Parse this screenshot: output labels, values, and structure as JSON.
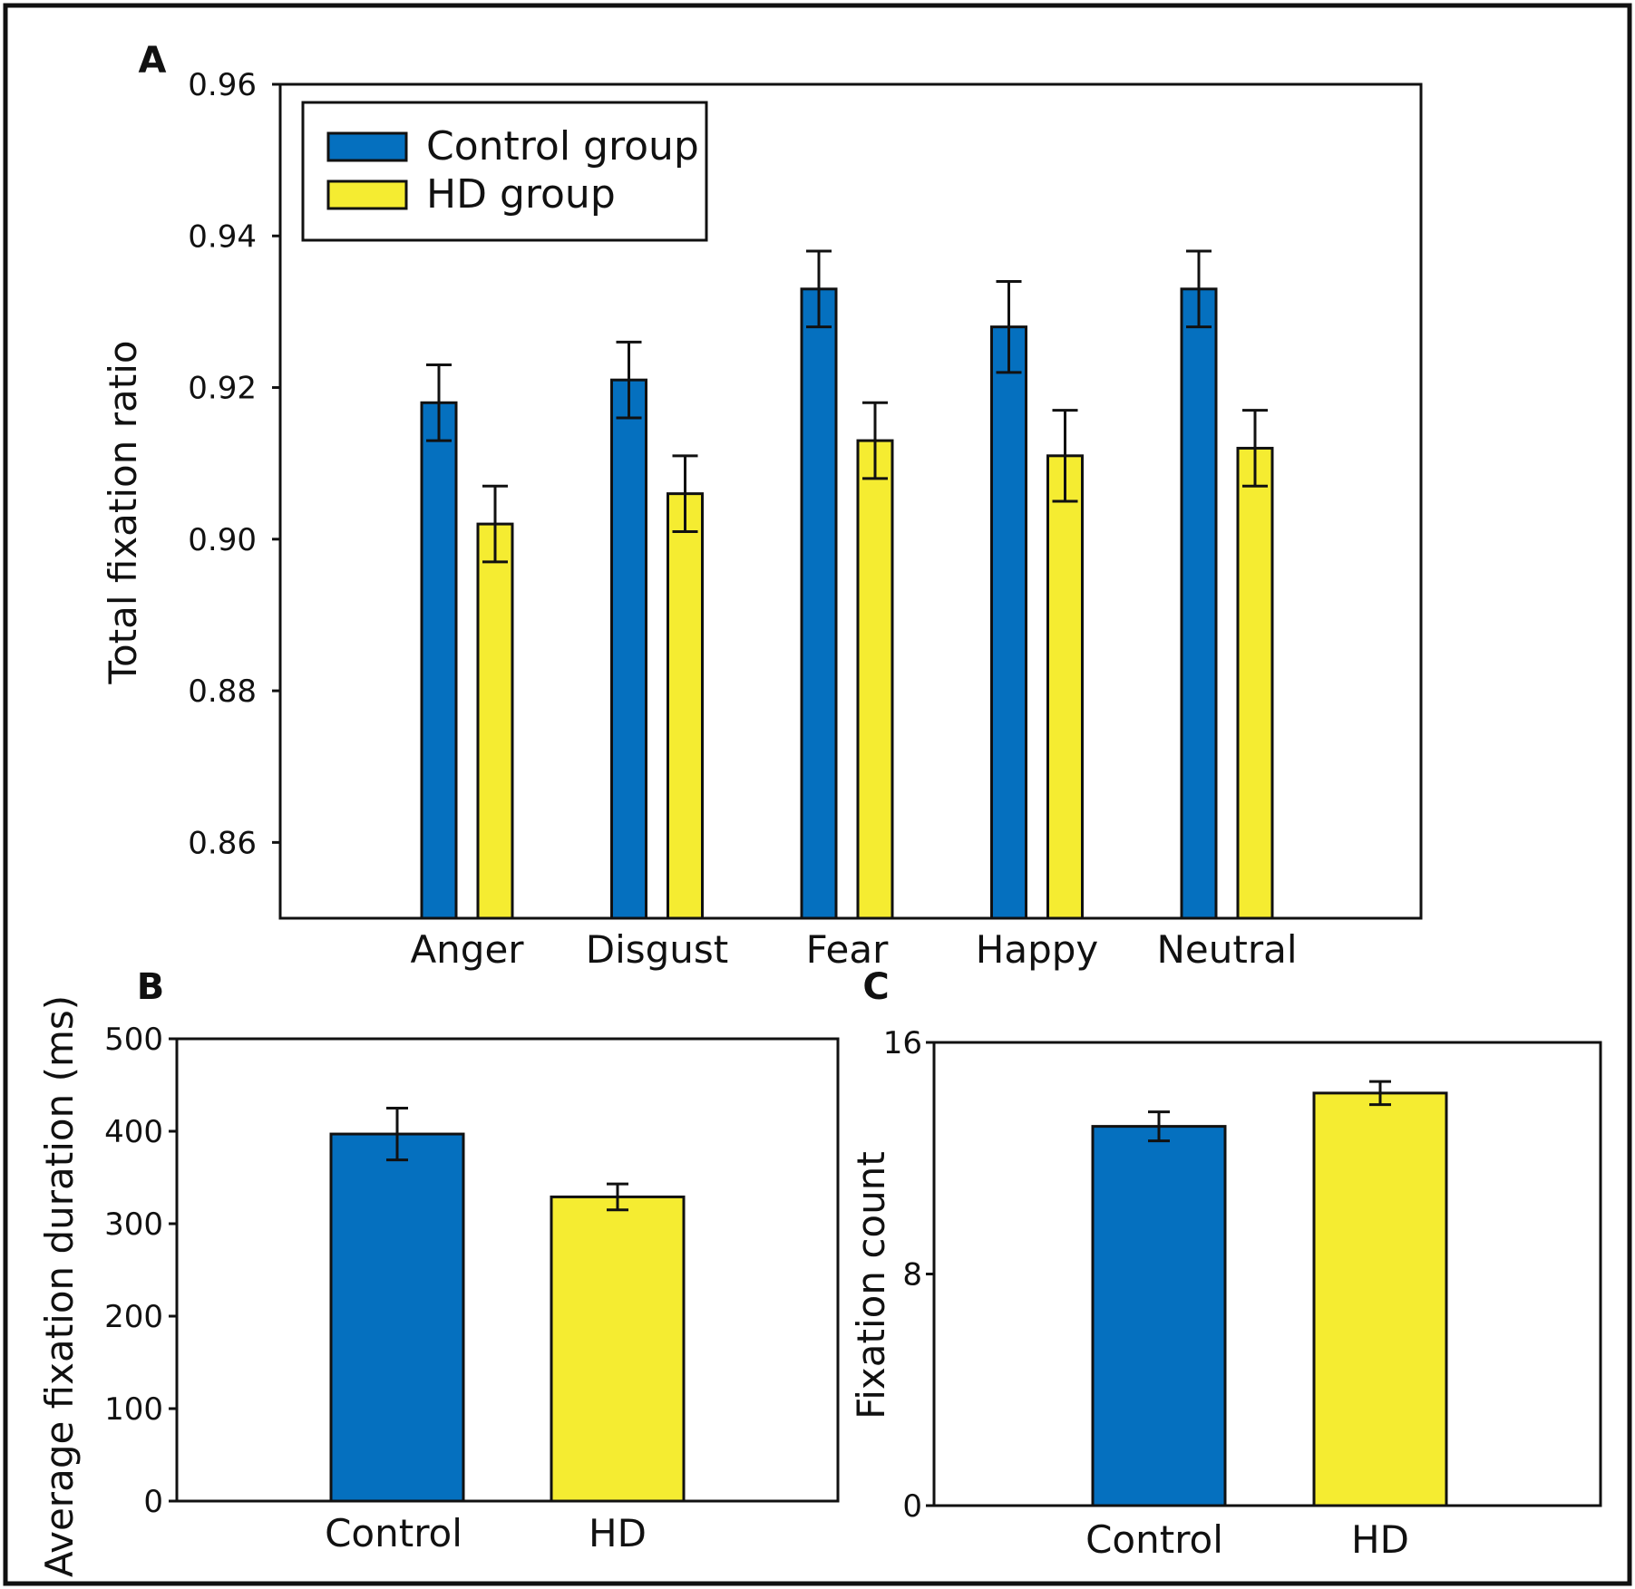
{
  "figure": {
    "colors": {
      "control": "#0570BF",
      "hd": "#F5EC31",
      "stroke": "#111111"
    }
  },
  "chart_data": [
    {
      "panel": "A",
      "type": "bar",
      "title": "",
      "xlabel": "",
      "ylabel": "Total fixation ratio",
      "ylim": [
        0.85,
        0.96
      ],
      "yticks": [
        "0.86",
        "0.88",
        "0.90",
        "0.92",
        "0.94",
        "0.96"
      ],
      "categories": [
        "Anger",
        "Disgust",
        "Fear",
        "Happy",
        "Neutral"
      ],
      "series": [
        {
          "name": "Control group",
          "color": "#0570BF",
          "values": [
            0.918,
            0.921,
            0.933,
            0.928,
            0.933
          ],
          "errors": [
            0.005,
            0.005,
            0.005,
            0.006,
            0.005
          ]
        },
        {
          "name": "HD group",
          "color": "#F5EC31",
          "values": [
            0.902,
            0.906,
            0.913,
            0.911,
            0.912
          ],
          "errors": [
            0.005,
            0.005,
            0.005,
            0.006,
            0.005
          ]
        }
      ],
      "legend": {
        "position": "top-left",
        "entries": [
          "Control group",
          "HD group"
        ]
      }
    },
    {
      "panel": "B",
      "type": "bar",
      "title": "",
      "xlabel": "",
      "ylabel": "Average fixation duration (ms)",
      "ylim": [
        0,
        500
      ],
      "yticks": [
        "0",
        "100",
        "200",
        "300",
        "400",
        "500"
      ],
      "categories": [
        "Control",
        "HD"
      ],
      "values": [
        397,
        329
      ],
      "errors": [
        28,
        14
      ],
      "colors": [
        "#0570BF",
        "#F5EC31"
      ]
    },
    {
      "panel": "C",
      "type": "bar",
      "title": "",
      "xlabel": "",
      "ylabel": "Fixation count",
      "ylim": [
        0,
        16
      ],
      "yticks": [
        "0",
        "8",
        "16"
      ],
      "categories": [
        "Control",
        "HD"
      ],
      "values": [
        13.1,
        14.25
      ],
      "errors": [
        0.5,
        0.4
      ],
      "colors": [
        "#0570BF",
        "#F5EC31"
      ]
    }
  ]
}
